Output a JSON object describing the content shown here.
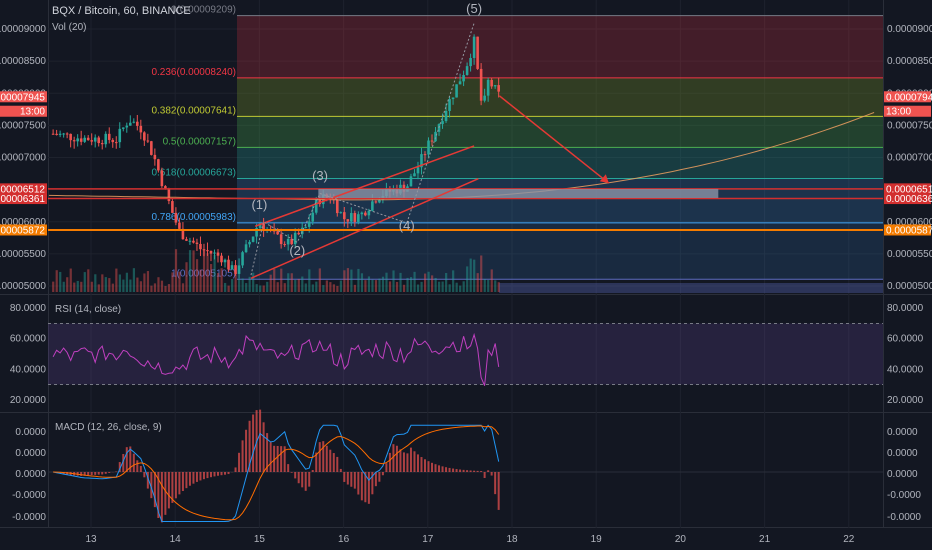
{
  "header": {
    "symbol_line": "BQX / Bitcoin, 60, BINANCE",
    "volume_label": "Vol (20)"
  },
  "rsi": {
    "label": "RSI (14, close)",
    "ticks": [
      "80.0000",
      "60.0000",
      "40.0000",
      "20.0000"
    ],
    "upper_band": 70,
    "lower_band": 30,
    "line_color": "#c040c0"
  },
  "macd": {
    "label": "MACD (12, 26, close, 9)",
    "ticks": [
      "0.0000",
      "0.0000",
      "0.0000",
      "-0.0000",
      "-0.0000"
    ]
  },
  "chart_data": {
    "type": "candlestick",
    "pair": "BQX / Bitcoin",
    "timeframe": "60",
    "exchange": "BINANCE",
    "price_axis_ticks": [
      "0.00009000",
      "0.00008500",
      "0.00008000",
      "0.00007500",
      "0.00007000",
      "0.00006500",
      "0.00006000",
      "0.00005500",
      "0.00005000"
    ],
    "price_axis_values": [
      9e-05,
      8.5e-05,
      8e-05,
      7.5e-05,
      7e-05,
      6.5e-05,
      6e-05,
      5.5e-05,
      5e-05
    ],
    "x_tick_labels": [
      "13",
      "14",
      "15",
      "16",
      "17",
      "18",
      "19",
      "20",
      "21",
      "22"
    ],
    "left_axis_labels": [
      {
        "text": "0.00007945",
        "value": 7.945e-05,
        "color": "#ef5350"
      },
      {
        "text": "13:00",
        "value": 7.72e-05,
        "color": "#ef5350"
      },
      {
        "text": "0.00006512",
        "value": 6.512e-05,
        "color": "#d32f2f"
      },
      {
        "text": "0.00006361",
        "value": 6.361e-05,
        "color": "#d32f2f"
      },
      {
        "text": "0.00005872",
        "value": 5.872e-05,
        "color": "#f57c00"
      }
    ],
    "right_axis_labels": [
      {
        "text": "0.00007945",
        "value": 7.945e-05,
        "color": "#ef5350"
      },
      {
        "text": "13:00",
        "value": 7.72e-05,
        "color": "#ef5350"
      },
      {
        "text": "0.00006512",
        "value": 6.512e-05,
        "color": "#d32f2f"
      },
      {
        "text": "0.00006361",
        "value": 6.361e-05,
        "color": "#d32f2f"
      },
      {
        "text": "0.00005872",
        "value": 5.872e-05,
        "color": "#f57c00"
      }
    ],
    "fib_levels": [
      {
        "label": "0(0.00009209)",
        "value": 9.209e-05,
        "color": "#787b86"
      },
      {
        "label": "0.236(0.00008240)",
        "value": 8.24e-05,
        "color": "#f23645"
      },
      {
        "label": "0.382(0.00007641)",
        "value": 7.641e-05,
        "color": "#c0ca33"
      },
      {
        "label": "0.5(0.00007157)",
        "value": 7.157e-05,
        "color": "#4caf50"
      },
      {
        "label": "0.618(0.00006673)",
        "value": 6.673e-05,
        "color": "#26a69a"
      },
      {
        "label": "0.786(0.00005983)",
        "value": 5.983e-05,
        "color": "#42a5f5"
      },
      {
        "label": "1(0.00005105)",
        "value": 5.105e-05,
        "color": "#5c6bc0"
      }
    ],
    "wave_labels": [
      "(1)",
      "(2)",
      "(3)",
      "(4)",
      "(5)"
    ],
    "colors": {
      "up": "#26a69a",
      "down": "#ef5350",
      "background": "#131722",
      "ma_curve": "#f0a060",
      "target_box": "#8c93a6"
    }
  }
}
